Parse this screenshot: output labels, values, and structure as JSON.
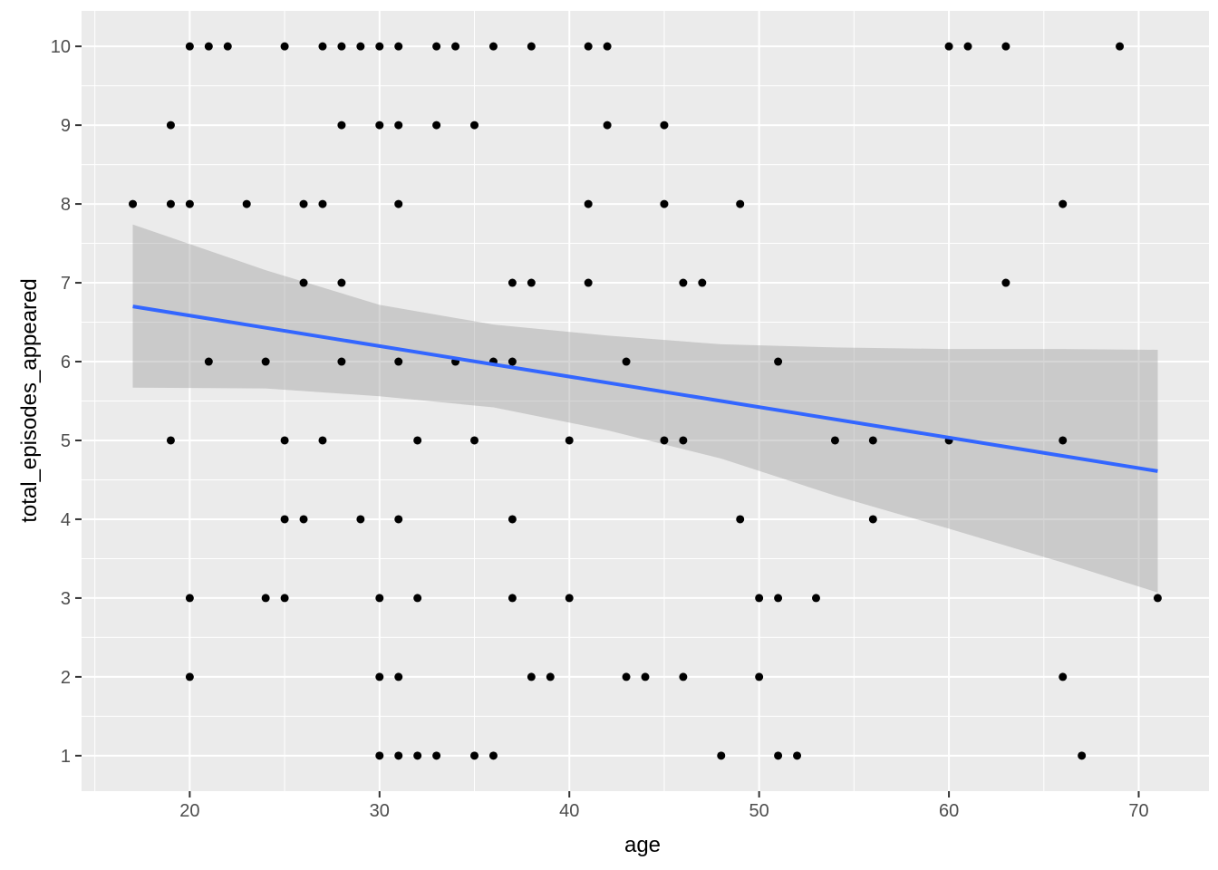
{
  "chart_data": {
    "type": "scatter",
    "title": "",
    "xlabel": "age",
    "ylabel": "total_episodes_appeared",
    "xlim": [
      14.3,
      73.7
    ],
    "ylim": [
      0.55,
      10.45
    ],
    "x_ticks": [
      20,
      30,
      40,
      50,
      60,
      70
    ],
    "x_tick_labels": [
      "20",
      "30",
      "40",
      "50",
      "60",
      "70"
    ],
    "y_ticks": [
      1,
      2,
      3,
      4,
      5,
      6,
      7,
      8,
      9,
      10
    ],
    "y_tick_labels": [
      "1",
      "2",
      "3",
      "4",
      "5",
      "6",
      "7",
      "8",
      "9",
      "10"
    ],
    "grid": true,
    "background": "#ebebeb",
    "point_color": "#000000",
    "points": [
      [
        17,
        8
      ],
      [
        19,
        9
      ],
      [
        19,
        8
      ],
      [
        19,
        5
      ],
      [
        20,
        10
      ],
      [
        20,
        8
      ],
      [
        20,
        3
      ],
      [
        20,
        2
      ],
      [
        21,
        10
      ],
      [
        21,
        6
      ],
      [
        22,
        10
      ],
      [
        23,
        8
      ],
      [
        24,
        6
      ],
      [
        24,
        3
      ],
      [
        25,
        10
      ],
      [
        25,
        5
      ],
      [
        25,
        4
      ],
      [
        25,
        3
      ],
      [
        26,
        8
      ],
      [
        26,
        7
      ],
      [
        26,
        4
      ],
      [
        27,
        10
      ],
      [
        27,
        8
      ],
      [
        27,
        5
      ],
      [
        28,
        10
      ],
      [
        28,
        9
      ],
      [
        28,
        7
      ],
      [
        28,
        6
      ],
      [
        29,
        10
      ],
      [
        29,
        4
      ],
      [
        30,
        10
      ],
      [
        30,
        9
      ],
      [
        30,
        3
      ],
      [
        30,
        2
      ],
      [
        30,
        1
      ],
      [
        31,
        10
      ],
      [
        31,
        9
      ],
      [
        31,
        8
      ],
      [
        31,
        6
      ],
      [
        31,
        4
      ],
      [
        31,
        2
      ],
      [
        31,
        1
      ],
      [
        32,
        5
      ],
      [
        32,
        3
      ],
      [
        32,
        1
      ],
      [
        33,
        10
      ],
      [
        33,
        9
      ],
      [
        33,
        1
      ],
      [
        34,
        10
      ],
      [
        34,
        6
      ],
      [
        35,
        9
      ],
      [
        35,
        5
      ],
      [
        35,
        1
      ],
      [
        36,
        10
      ],
      [
        36,
        6
      ],
      [
        36,
        1
      ],
      [
        37,
        7
      ],
      [
        37,
        6
      ],
      [
        37,
        4
      ],
      [
        37,
        3
      ],
      [
        38,
        10
      ],
      [
        38,
        7
      ],
      [
        38,
        2
      ],
      [
        39,
        2
      ],
      [
        40,
        5
      ],
      [
        40,
        3
      ],
      [
        41,
        10
      ],
      [
        41,
        8
      ],
      [
        41,
        7
      ],
      [
        42,
        10
      ],
      [
        42,
        9
      ],
      [
        43,
        6
      ],
      [
        43,
        2
      ],
      [
        44,
        2
      ],
      [
        45,
        9
      ],
      [
        45,
        8
      ],
      [
        45,
        5
      ],
      [
        46,
        7
      ],
      [
        46,
        5
      ],
      [
        46,
        2
      ],
      [
        47,
        7
      ],
      [
        48,
        1
      ],
      [
        49,
        8
      ],
      [
        49,
        4
      ],
      [
        50,
        3
      ],
      [
        50,
        2
      ],
      [
        51,
        6
      ],
      [
        51,
        3
      ],
      [
        51,
        1
      ],
      [
        52,
        1
      ],
      [
        53,
        3
      ],
      [
        54,
        5
      ],
      [
        56,
        5
      ],
      [
        56,
        4
      ],
      [
        60,
        10
      ],
      [
        60,
        5
      ],
      [
        61,
        10
      ],
      [
        63,
        10
      ],
      [
        63,
        7
      ],
      [
        66,
        8
      ],
      [
        66,
        5
      ],
      [
        66,
        2
      ],
      [
        67,
        1
      ],
      [
        69,
        10
      ],
      [
        71,
        3
      ]
    ],
    "smooth": {
      "method": "lm",
      "color": "#3366ff",
      "band_color": "#999999",
      "x": [
        17,
        71
      ],
      "y": [
        6.7,
        4.61
      ],
      "band": [
        {
          "x": 17,
          "lower": 5.67,
          "upper": 7.74
        },
        {
          "x": 24,
          "lower": 5.66,
          "upper": 7.16
        },
        {
          "x": 30,
          "lower": 5.56,
          "upper": 6.72
        },
        {
          "x": 36,
          "lower": 5.42,
          "upper": 6.47
        },
        {
          "x": 42,
          "lower": 5.13,
          "upper": 6.33
        },
        {
          "x": 48,
          "lower": 4.77,
          "upper": 6.22
        },
        {
          "x": 54,
          "lower": 4.3,
          "upper": 6.18
        },
        {
          "x": 60,
          "lower": 3.88,
          "upper": 6.16
        },
        {
          "x": 66,
          "lower": 3.45,
          "upper": 6.16
        },
        {
          "x": 71,
          "lower": 3.07,
          "upper": 6.15
        }
      ]
    }
  }
}
